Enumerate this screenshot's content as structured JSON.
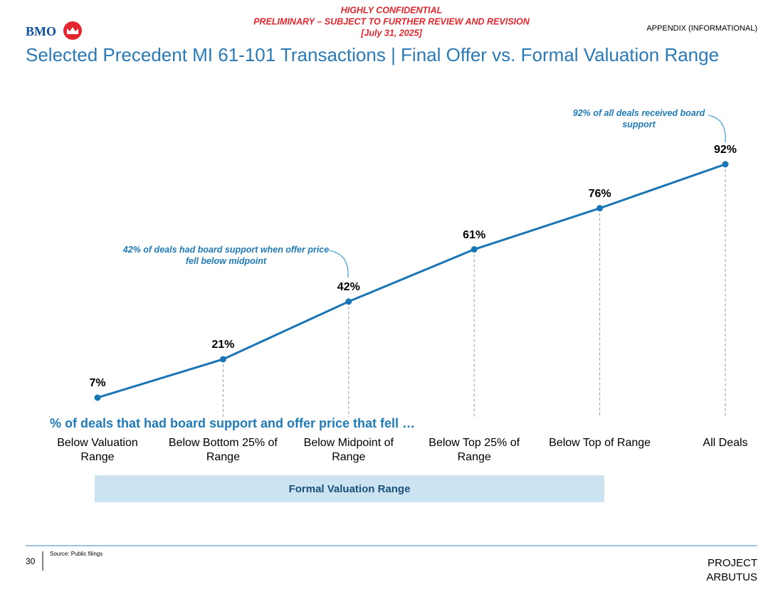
{
  "header": {
    "confidential": "HIGHLY CONFIDENTIAL",
    "preliminary": "PRELIMINARY – SUBJECT TO FURTHER REVIEW AND REVISION",
    "date": "[July 31, 2025]",
    "logo": "BMO",
    "appendix": "APPENDIX (INFORMATIONAL)"
  },
  "chart_data": {
    "type": "line",
    "title": "Selected Precedent MI 61-101 Transactions | Final Offer vs. Formal Valuation Range",
    "subtitle": "% of deals that had board support and offer price that fell …",
    "categories": [
      "Below Valuation Range",
      "Below Bottom 25% of Range",
      "Below Midpoint of Range",
      "Below Top 25% of Range",
      "Below Top of Range",
      "All Deals"
    ],
    "values": [
      7,
      21,
      42,
      61,
      76,
      92
    ],
    "value_labels": [
      "7%",
      "21%",
      "42%",
      "61%",
      "76%",
      "92%"
    ],
    "color": "#1a75b4",
    "ylim": [
      0,
      100
    ],
    "annotations": [
      "42% of deals had board support when offer price fell below midpoint",
      "92% of all deals received board support"
    ],
    "band_label": "Formal Valuation Range"
  },
  "footer": {
    "page": "30",
    "source": "Source: Public filings",
    "project": [
      "PROJECT",
      "ARBUTUS"
    ]
  }
}
